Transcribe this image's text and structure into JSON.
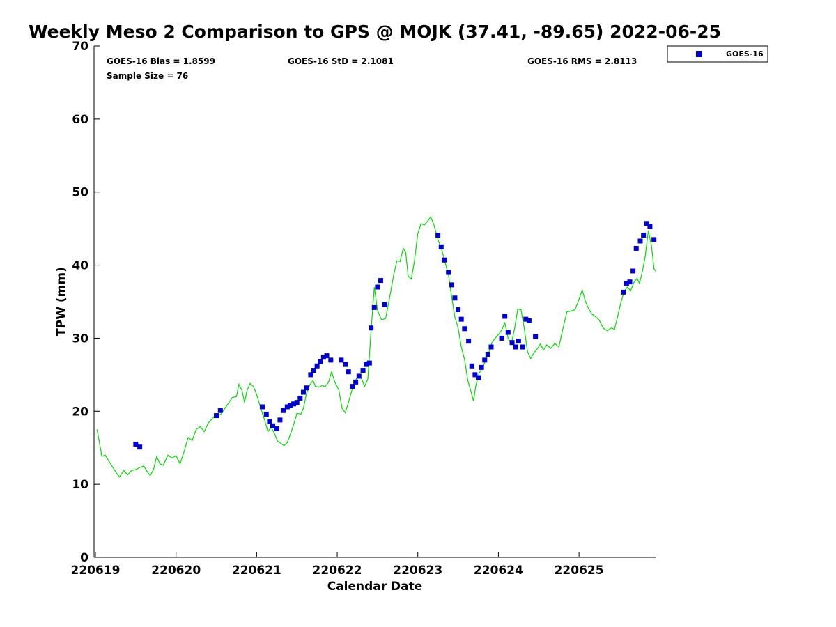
{
  "chart_data": {
    "type": "scatter",
    "title": "Weekly Meso 2 Comparison to GPS @ MOJK (37.41, -89.65) 2022-06-25",
    "xlabel": "Calendar Date",
    "ylabel": "TPW (mm)",
    "xlim": [
      0,
      6.95
    ],
    "ylim": [
      0,
      70
    ],
    "grid": false,
    "legend_position": "top-right",
    "x_ticks": [
      {
        "value": 0,
        "label": "220619"
      },
      {
        "value": 1,
        "label": "220620"
      },
      {
        "value": 2,
        "label": "220621"
      },
      {
        "value": 3,
        "label": "220622"
      },
      {
        "value": 4,
        "label": "220623"
      },
      {
        "value": 5,
        "label": "220624"
      },
      {
        "value": 6,
        "label": "220625"
      }
    ],
    "y_ticks": [
      0,
      10,
      20,
      30,
      40,
      50,
      60,
      70
    ],
    "stats": {
      "bias": "GOES-16 Bias = 1.8599",
      "std": "GOES-16 StD = 2.1081",
      "rms": "GOES-16 RMS = 2.8113",
      "sample": "Sample Size = 76"
    },
    "series": [
      {
        "name": "GOES-16",
        "color": "#0000cc",
        "marker": "square",
        "points": [
          [
            0.5,
            15.5
          ],
          [
            0.55,
            15.1
          ],
          [
            1.5,
            19.4
          ],
          [
            1.55,
            20.1
          ],
          [
            2.07,
            20.6
          ],
          [
            2.12,
            19.6
          ],
          [
            2.16,
            18.6
          ],
          [
            2.2,
            18.0
          ],
          [
            2.25,
            17.6
          ],
          [
            2.29,
            18.8
          ],
          [
            2.33,
            20.1
          ],
          [
            2.38,
            20.6
          ],
          [
            2.42,
            20.8
          ],
          [
            2.46,
            21.0
          ],
          [
            2.5,
            21.2
          ],
          [
            2.54,
            21.8
          ],
          [
            2.58,
            22.6
          ],
          [
            2.62,
            23.2
          ],
          [
            2.67,
            25.0
          ],
          [
            2.71,
            25.6
          ],
          [
            2.75,
            26.2
          ],
          [
            2.79,
            26.8
          ],
          [
            2.83,
            27.4
          ],
          [
            2.87,
            27.6
          ],
          [
            2.92,
            27.0
          ],
          [
            3.05,
            27.0
          ],
          [
            3.1,
            26.4
          ],
          [
            3.14,
            25.4
          ],
          [
            3.19,
            23.4
          ],
          [
            3.23,
            24.0
          ],
          [
            3.27,
            24.8
          ],
          [
            3.32,
            25.6
          ],
          [
            3.36,
            26.4
          ],
          [
            3.4,
            26.6
          ],
          [
            3.42,
            31.4
          ],
          [
            3.46,
            34.2
          ],
          [
            3.5,
            37.0
          ],
          [
            3.54,
            37.9
          ],
          [
            3.59,
            34.6
          ],
          [
            4.25,
            44.1
          ],
          [
            4.29,
            42.5
          ],
          [
            4.33,
            40.7
          ],
          [
            4.38,
            39.0
          ],
          [
            4.42,
            37.3
          ],
          [
            4.46,
            35.5
          ],
          [
            4.5,
            33.9
          ],
          [
            4.54,
            32.6
          ],
          [
            4.58,
            31.3
          ],
          [
            4.63,
            29.6
          ],
          [
            4.67,
            26.2
          ],
          [
            4.71,
            25.0
          ],
          [
            4.75,
            24.6
          ],
          [
            4.79,
            26.0
          ],
          [
            4.83,
            27.0
          ],
          [
            4.87,
            27.8
          ],
          [
            4.91,
            28.8
          ],
          [
            5.04,
            30.0
          ],
          [
            5.08,
            33.0
          ],
          [
            5.12,
            30.8
          ],
          [
            5.17,
            29.4
          ],
          [
            5.21,
            28.8
          ],
          [
            5.25,
            29.6
          ],
          [
            5.3,
            28.8
          ],
          [
            5.34,
            32.6
          ],
          [
            5.38,
            32.4
          ],
          [
            5.46,
            30.2
          ],
          [
            6.55,
            36.3
          ],
          [
            6.59,
            37.5
          ],
          [
            6.63,
            37.7
          ],
          [
            6.67,
            39.2
          ],
          [
            6.71,
            42.3
          ],
          [
            6.76,
            43.3
          ],
          [
            6.8,
            44.1
          ],
          [
            6.84,
            45.7
          ],
          [
            6.88,
            45.3
          ],
          [
            6.93,
            43.5
          ]
        ]
      },
      {
        "name": "GPS",
        "color": "#00dd00",
        "marker": "line",
        "points": [
          [
            0.02,
            17.5
          ],
          [
            0.08,
            13.8
          ],
          [
            0.12,
            14.0
          ],
          [
            0.2,
            12.6
          ],
          [
            0.27,
            11.4
          ],
          [
            0.3,
            11.0
          ],
          [
            0.35,
            11.9
          ],
          [
            0.4,
            11.3
          ],
          [
            0.45,
            11.9
          ],
          [
            0.5,
            12.0
          ],
          [
            0.55,
            12.3
          ],
          [
            0.6,
            12.5
          ],
          [
            0.65,
            11.6
          ],
          [
            0.68,
            11.2
          ],
          [
            0.72,
            12.0
          ],
          [
            0.76,
            13.8
          ],
          [
            0.8,
            12.8
          ],
          [
            0.84,
            12.6
          ],
          [
            0.9,
            14.0
          ],
          [
            0.95,
            13.6
          ],
          [
            1.0,
            13.9
          ],
          [
            1.05,
            12.8
          ],
          [
            1.1,
            14.5
          ],
          [
            1.15,
            16.4
          ],
          [
            1.2,
            16.0
          ],
          [
            1.25,
            17.5
          ],
          [
            1.3,
            17.9
          ],
          [
            1.35,
            17.2
          ],
          [
            1.4,
            18.4
          ],
          [
            1.45,
            19.0
          ],
          [
            1.5,
            19.6
          ],
          [
            1.55,
            19.5
          ],
          [
            1.6,
            20.3
          ],
          [
            1.65,
            21.1
          ],
          [
            1.7,
            21.9
          ],
          [
            1.75,
            22.0
          ],
          [
            1.78,
            23.7
          ],
          [
            1.82,
            22.8
          ],
          [
            1.85,
            21.2
          ],
          [
            1.88,
            22.8
          ],
          [
            1.92,
            23.8
          ],
          [
            1.96,
            23.4
          ],
          [
            2.0,
            22.3
          ],
          [
            2.05,
            20.4
          ],
          [
            2.1,
            18.8
          ],
          [
            2.14,
            17.2
          ],
          [
            2.18,
            17.8
          ],
          [
            2.22,
            17.0
          ],
          [
            2.26,
            15.9
          ],
          [
            2.3,
            15.6
          ],
          [
            2.34,
            15.3
          ],
          [
            2.38,
            15.7
          ],
          [
            2.42,
            16.9
          ],
          [
            2.46,
            18.2
          ],
          [
            2.5,
            19.7
          ],
          [
            2.55,
            19.6
          ],
          [
            2.58,
            20.4
          ],
          [
            2.62,
            22.5
          ],
          [
            2.66,
            23.6
          ],
          [
            2.7,
            24.2
          ],
          [
            2.73,
            23.4
          ],
          [
            2.77,
            23.3
          ],
          [
            2.81,
            23.5
          ],
          [
            2.85,
            23.4
          ],
          [
            2.89,
            23.9
          ],
          [
            2.93,
            25.4
          ],
          [
            2.97,
            24.0
          ],
          [
            3.02,
            22.9
          ],
          [
            3.06,
            20.4
          ],
          [
            3.1,
            19.8
          ],
          [
            3.14,
            21.2
          ],
          [
            3.18,
            22.8
          ],
          [
            3.22,
            24.1
          ],
          [
            3.26,
            24.9
          ],
          [
            3.3,
            24.5
          ],
          [
            3.34,
            23.4
          ],
          [
            3.38,
            24.4
          ],
          [
            3.42,
            31.0
          ],
          [
            3.46,
            37.0
          ],
          [
            3.5,
            33.8
          ],
          [
            3.55,
            32.5
          ],
          [
            3.6,
            32.7
          ],
          [
            3.65,
            35.5
          ],
          [
            3.7,
            38.6
          ],
          [
            3.74,
            40.6
          ],
          [
            3.78,
            40.5
          ],
          [
            3.82,
            42.3
          ],
          [
            3.85,
            41.7
          ],
          [
            3.88,
            38.5
          ],
          [
            3.92,
            38.1
          ],
          [
            3.96,
            40.7
          ],
          [
            4.0,
            44.3
          ],
          [
            4.04,
            45.7
          ],
          [
            4.08,
            45.5
          ],
          [
            4.12,
            46.0
          ],
          [
            4.16,
            46.6
          ],
          [
            4.2,
            45.5
          ],
          [
            4.25,
            43.5
          ],
          [
            4.3,
            42.0
          ],
          [
            4.34,
            40.3
          ],
          [
            4.38,
            38.7
          ],
          [
            4.42,
            35.7
          ],
          [
            4.46,
            32.9
          ],
          [
            4.5,
            31.4
          ],
          [
            4.54,
            28.8
          ],
          [
            4.58,
            27.1
          ],
          [
            4.62,
            24.2
          ],
          [
            4.66,
            22.7
          ],
          [
            4.69,
            21.4
          ],
          [
            4.72,
            23.5
          ],
          [
            4.76,
            25.2
          ],
          [
            4.8,
            25.9
          ],
          [
            4.84,
            26.9
          ],
          [
            4.88,
            28.0
          ],
          [
            4.92,
            29.4
          ],
          [
            4.96,
            30.0
          ],
          [
            5.0,
            30.5
          ],
          [
            5.04,
            31.1
          ],
          [
            5.08,
            32.1
          ],
          [
            5.12,
            30.0
          ],
          [
            5.16,
            29.2
          ],
          [
            5.2,
            31.3
          ],
          [
            5.24,
            34.0
          ],
          [
            5.28,
            33.9
          ],
          [
            5.32,
            31.4
          ],
          [
            5.36,
            28.2
          ],
          [
            5.4,
            27.2
          ],
          [
            5.44,
            28.0
          ],
          [
            5.48,
            28.5
          ],
          [
            5.52,
            29.2
          ],
          [
            5.56,
            28.4
          ],
          [
            5.6,
            29.1
          ],
          [
            5.65,
            28.6
          ],
          [
            5.7,
            29.3
          ],
          [
            5.75,
            28.8
          ],
          [
            5.8,
            31.3
          ],
          [
            5.85,
            33.6
          ],
          [
            5.9,
            33.7
          ],
          [
            5.95,
            33.9
          ],
          [
            6.0,
            35.3
          ],
          [
            6.04,
            36.6
          ],
          [
            6.08,
            35.0
          ],
          [
            6.12,
            34.0
          ],
          [
            6.16,
            33.3
          ],
          [
            6.2,
            33.0
          ],
          [
            6.25,
            32.5
          ],
          [
            6.3,
            31.4
          ],
          [
            6.35,
            31.0
          ],
          [
            6.4,
            31.4
          ],
          [
            6.44,
            31.2
          ],
          [
            6.48,
            33.0
          ],
          [
            6.52,
            34.9
          ],
          [
            6.56,
            36.4
          ],
          [
            6.6,
            37.0
          ],
          [
            6.64,
            36.5
          ],
          [
            6.68,
            37.6
          ],
          [
            6.72,
            38.2
          ],
          [
            6.75,
            37.5
          ],
          [
            6.78,
            38.8
          ],
          [
            6.82,
            41.1
          ],
          [
            6.86,
            44.7
          ],
          [
            6.9,
            42.6
          ],
          [
            6.93,
            39.5
          ],
          [
            6.95,
            39.2
          ]
        ]
      }
    ]
  }
}
